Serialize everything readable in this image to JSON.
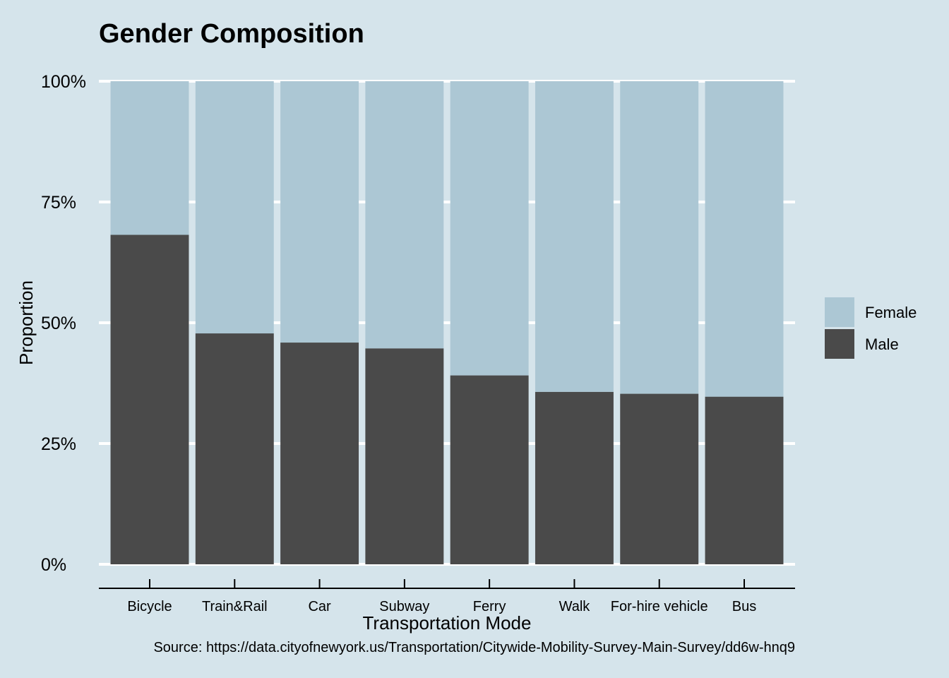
{
  "chart_data": {
    "type": "bar",
    "stacked": true,
    "title": "Gender Composition",
    "xlabel": "Transportation Mode",
    "ylabel": "Proportion",
    "caption": "Source: https://data.cityofnewyork.us/Transportation/Citywide-Mobility-Survey-Main-Survey/dd6w-hnq9",
    "categories": [
      "Bicycle",
      "Train&Rail",
      "Car",
      "Subway",
      "Ferry",
      "Walk",
      "For-hire vehicle",
      "Bus"
    ],
    "series": [
      {
        "name": "Male",
        "color": "#4a4a4a",
        "values": [
          0.682,
          0.478,
          0.459,
          0.447,
          0.391,
          0.357,
          0.353,
          0.347
        ]
      },
      {
        "name": "Female",
        "color": "#acc7d4",
        "values": [
          0.318,
          0.522,
          0.541,
          0.553,
          0.609,
          0.643,
          0.647,
          0.653
        ]
      }
    ],
    "ylim": [
      0,
      1
    ],
    "yticks": [
      {
        "value": 0,
        "label": "0%"
      },
      {
        "value": 0.25,
        "label": "25%"
      },
      {
        "value": 0.5,
        "label": "50%"
      },
      {
        "value": 0.75,
        "label": "75%"
      },
      {
        "value": 1,
        "label": "100%"
      }
    ],
    "legend": {
      "position": "right",
      "entries": [
        {
          "label": "Female",
          "color": "#acc7d4"
        },
        {
          "label": "Male",
          "color": "#4a4a4a"
        }
      ]
    },
    "grid": true,
    "background": "#d5e4eb",
    "gridline_color": "#ffffff"
  }
}
